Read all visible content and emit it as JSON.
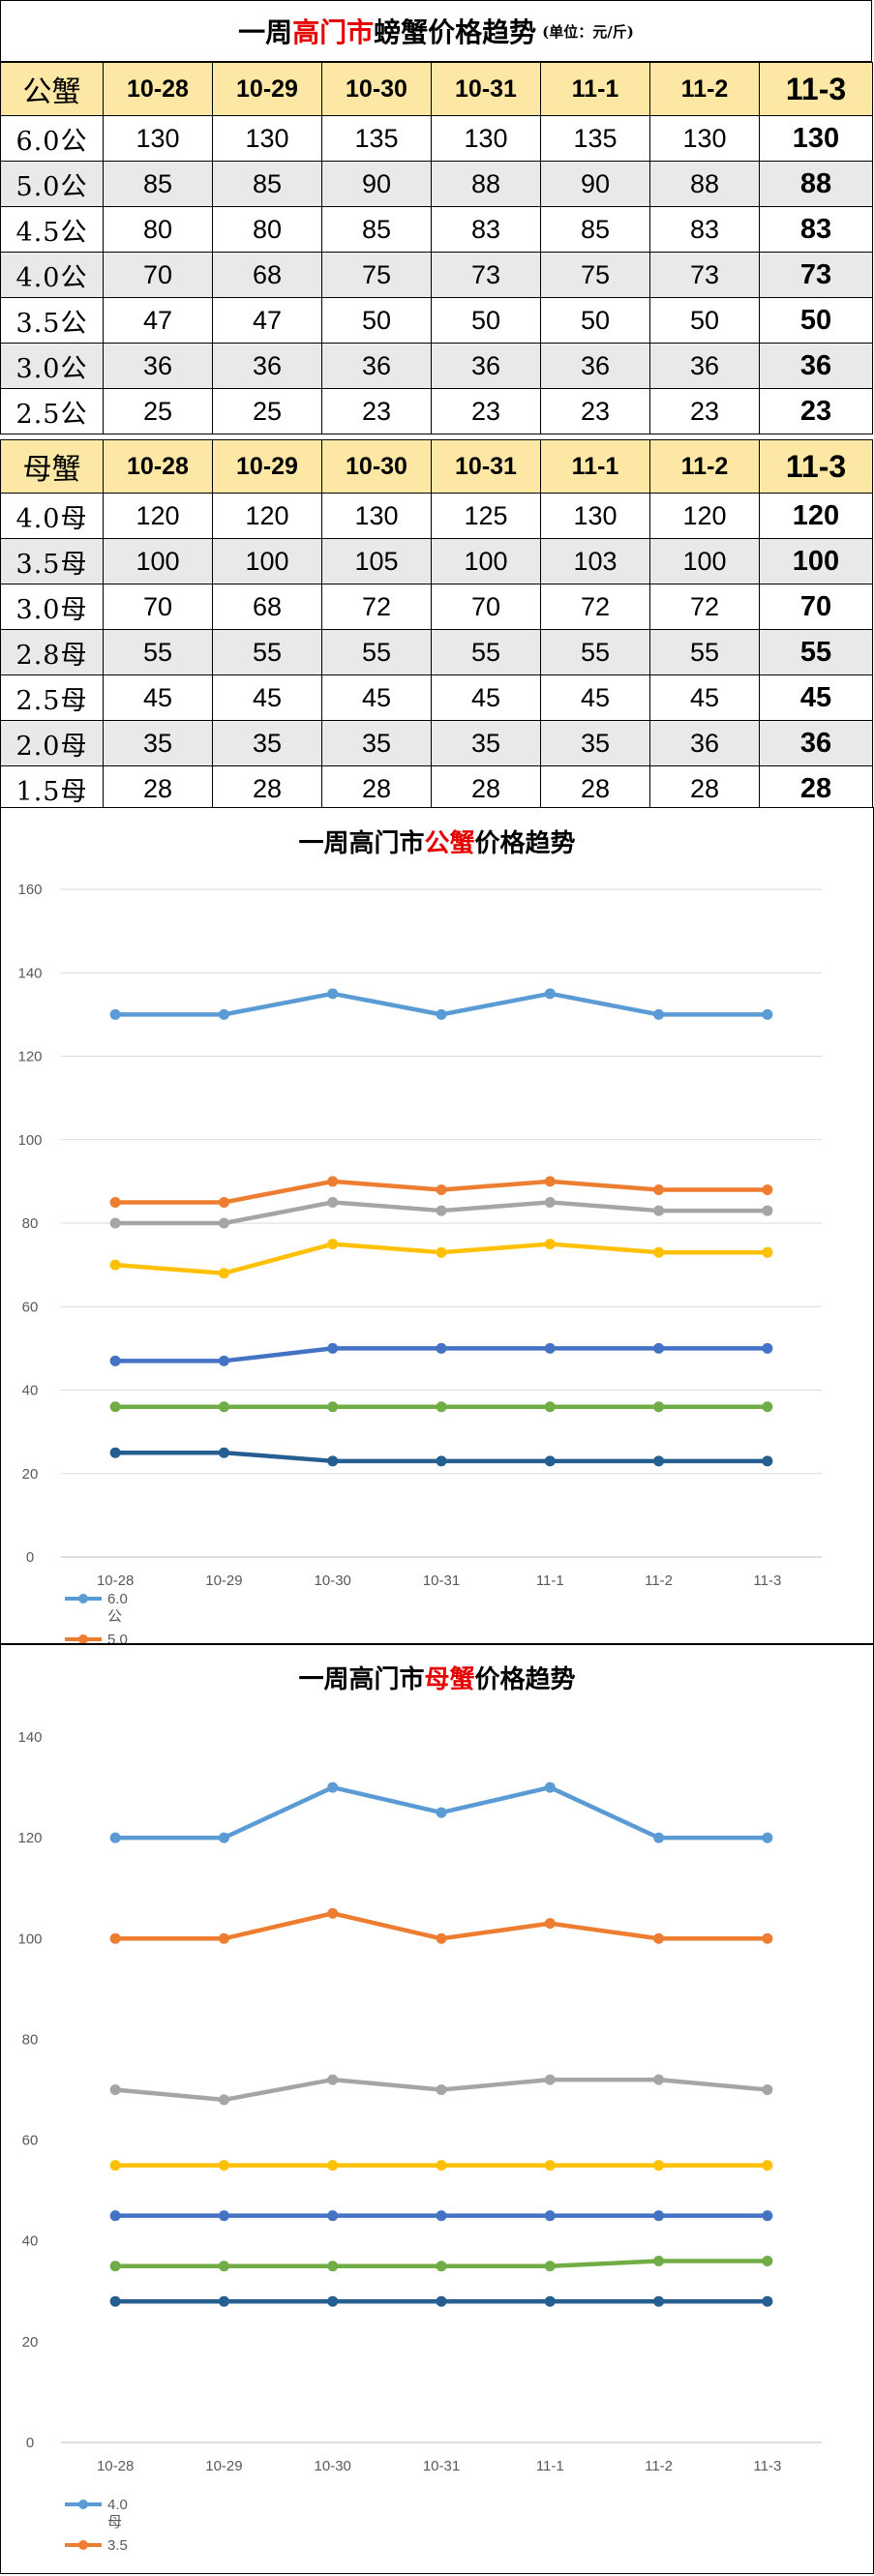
{
  "header": {
    "title_prefix": "一周",
    "title_red": "高门市",
    "title_suffix": "螃蟹价格趋势",
    "unit": "(单位：元/斤)"
  },
  "male_table": {
    "corner": "公蟹",
    "dates": [
      "10-28",
      "10-29",
      "10-30",
      "10-31",
      "11-1",
      "11-2",
      "11-3"
    ],
    "rows": [
      {
        "label": "6.0公",
        "values": [
          "130",
          "130",
          "135",
          "130",
          "135",
          "130",
          "130"
        ]
      },
      {
        "label": "5.0公",
        "values": [
          "85",
          "85",
          "90",
          "88",
          "90",
          "88",
          "88"
        ]
      },
      {
        "label": "4.5公",
        "values": [
          "80",
          "80",
          "85",
          "83",
          "85",
          "83",
          "83"
        ]
      },
      {
        "label": "4.0公",
        "values": [
          "70",
          "68",
          "75",
          "73",
          "75",
          "73",
          "73"
        ]
      },
      {
        "label": "3.5公",
        "values": [
          "47",
          "47",
          "50",
          "50",
          "50",
          "50",
          "50"
        ]
      },
      {
        "label": "3.0公",
        "values": [
          "36",
          "36",
          "36",
          "36",
          "36",
          "36",
          "36"
        ]
      },
      {
        "label": "2.5公",
        "values": [
          "25",
          "25",
          "23",
          "23",
          "23",
          "23",
          "23"
        ]
      }
    ]
  },
  "female_table": {
    "corner": "母蟹",
    "dates": [
      "10-28",
      "10-29",
      "10-30",
      "10-31",
      "11-1",
      "11-2",
      "11-3"
    ],
    "rows": [
      {
        "label": "4.0母",
        "values": [
          "120",
          "120",
          "130",
          "125",
          "130",
          "120",
          "120"
        ]
      },
      {
        "label": "3.5母",
        "values": [
          "100",
          "100",
          "105",
          "100",
          "103",
          "100",
          "100"
        ]
      },
      {
        "label": "3.0母",
        "values": [
          "70",
          "68",
          "72",
          "70",
          "72",
          "72",
          "70"
        ]
      },
      {
        "label": "2.8母",
        "values": [
          "55",
          "55",
          "55",
          "55",
          "55",
          "55",
          "55"
        ]
      },
      {
        "label": "2.5母",
        "values": [
          "45",
          "45",
          "45",
          "45",
          "45",
          "45",
          "45"
        ]
      },
      {
        "label": "2.0母",
        "values": [
          "35",
          "35",
          "35",
          "35",
          "35",
          "36",
          "36"
        ]
      },
      {
        "label": "1.5母",
        "values": [
          "28",
          "28",
          "28",
          "28",
          "28",
          "28",
          "28"
        ]
      }
    ]
  },
  "chart_data": [
    {
      "type": "line",
      "title_prefix": "一周高门市",
      "title_red": "公蟹",
      "title_suffix": "价格趋势",
      "x": [
        "10-28",
        "10-29",
        "10-30",
        "10-31",
        "11-1",
        "11-2",
        "11-3"
      ],
      "ylim": [
        0,
        160
      ],
      "yticks": [
        0,
        20,
        40,
        60,
        80,
        100,
        120,
        140,
        160
      ],
      "grid": true,
      "legend_position": "bottom-left",
      "legend_visible": [
        {
          "lines": [
            "6.0",
            "公"
          ],
          "color": "#5b9bd5"
        },
        {
          "lines": [
            "5.0"
          ],
          "color": "#ed7d31"
        }
      ],
      "series": [
        {
          "color": "#5b9bd5",
          "values": [
            130,
            130,
            135,
            130,
            135,
            130,
            130
          ]
        },
        {
          "color": "#ed7d31",
          "values": [
            85,
            85,
            90,
            88,
            90,
            88,
            88
          ]
        },
        {
          "color": "#a5a5a5",
          "values": [
            80,
            80,
            85,
            83,
            85,
            83,
            83
          ]
        },
        {
          "color": "#ffc000",
          "values": [
            70,
            68,
            75,
            73,
            75,
            73,
            73
          ]
        },
        {
          "color": "#4472c4",
          "values": [
            47,
            47,
            50,
            50,
            50,
            50,
            50
          ]
        },
        {
          "color": "#70ad47",
          "values": [
            36,
            36,
            36,
            36,
            36,
            36,
            36
          ]
        },
        {
          "color": "#255e91",
          "values": [
            25,
            25,
            23,
            23,
            23,
            23,
            23
          ]
        }
      ]
    },
    {
      "type": "line",
      "title_prefix": "一周高门市",
      "title_red": "母蟹",
      "title_suffix": "价格趋势",
      "x": [
        "10-28",
        "10-29",
        "10-30",
        "10-31",
        "11-1",
        "11-2",
        "11-3"
      ],
      "ylim": [
        0,
        140
      ],
      "yticks": [
        0,
        20,
        40,
        60,
        80,
        100,
        120,
        140
      ],
      "grid": false,
      "legend_position": "bottom-left",
      "legend_visible": [
        {
          "lines": [
            "4.0",
            "母"
          ],
          "color": "#5b9bd5"
        },
        {
          "lines": [
            "3.5"
          ],
          "color": "#ed7d31"
        }
      ],
      "series": [
        {
          "color": "#5b9bd5",
          "values": [
            120,
            120,
            130,
            125,
            130,
            120,
            120
          ]
        },
        {
          "color": "#ed7d31",
          "values": [
            100,
            100,
            105,
            100,
            103,
            100,
            100
          ]
        },
        {
          "color": "#a5a5a5",
          "values": [
            70,
            68,
            72,
            70,
            72,
            72,
            70
          ]
        },
        {
          "color": "#ffc000",
          "values": [
            55,
            55,
            55,
            55,
            55,
            55,
            55
          ]
        },
        {
          "color": "#4472c4",
          "values": [
            45,
            45,
            45,
            45,
            45,
            45,
            45
          ]
        },
        {
          "color": "#70ad47",
          "values": [
            35,
            35,
            35,
            35,
            35,
            36,
            36
          ]
        },
        {
          "color": "#255e91",
          "values": [
            28,
            28,
            28,
            28,
            28,
            28,
            28
          ]
        }
      ]
    }
  ]
}
